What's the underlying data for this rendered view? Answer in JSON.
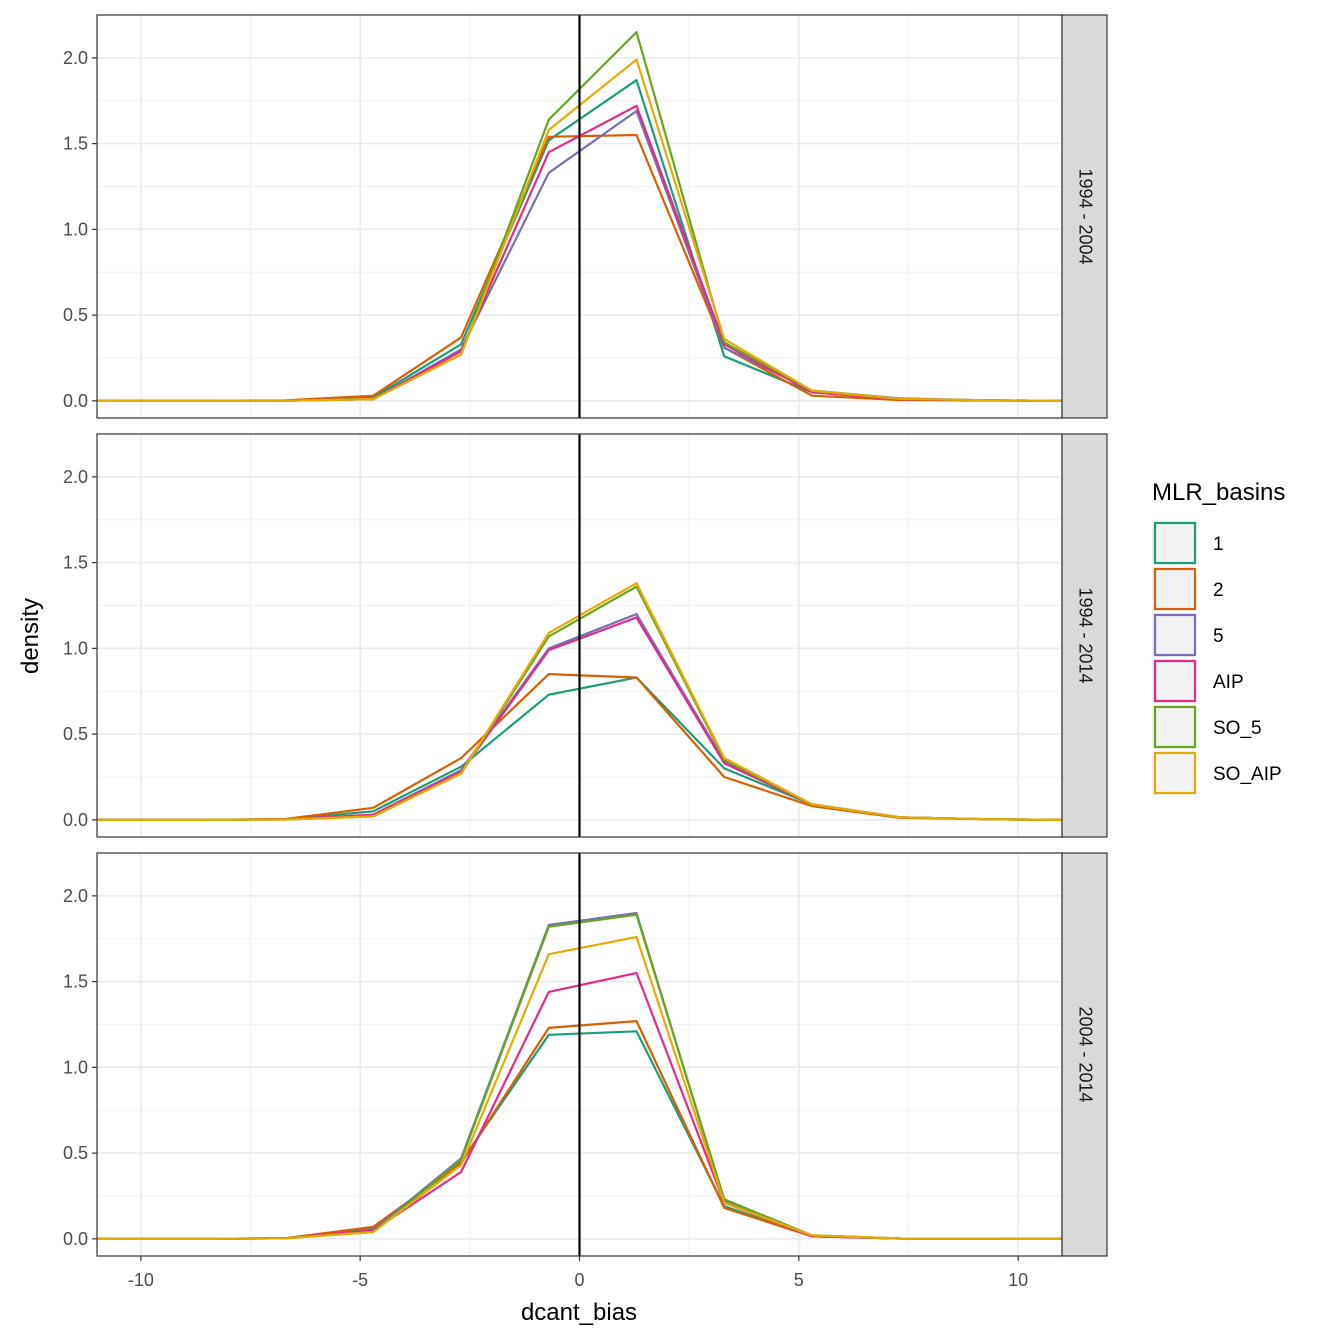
{
  "chart_data": {
    "type": "line",
    "xlabel": "dcant_bias",
    "ylabel": "density",
    "xlim": [
      -11,
      11
    ],
    "ylim": [
      -0.1,
      2.25
    ],
    "x_ticks": [
      -10,
      -5,
      0,
      5,
      10
    ],
    "x_tick_labels": [
      "-10",
      "-5",
      "0",
      "5",
      "10"
    ],
    "y_ticks": [
      0,
      0.5,
      1,
      1.5,
      2
    ],
    "y_tick_labels": [
      "0.0",
      "0.5",
      "1.0",
      "1.5",
      "2.0"
    ],
    "grid": true,
    "reference_line": {
      "x": 0,
      "color": "#000000"
    },
    "x": [
      -11,
      -8.7,
      -6.7,
      -4.7,
      -2.7,
      -0.7,
      1.3,
      3.3,
      5.3,
      7.3,
      9.3,
      11
    ],
    "legend": {
      "title": "MLR_basins",
      "position": "right",
      "entries": [
        {
          "label": "1",
          "color": "#1b9e77"
        },
        {
          "label": "2",
          "color": "#d95f02"
        },
        {
          "label": "5",
          "color": "#7570b3"
        },
        {
          "label": "AIP",
          "color": "#e7298a"
        },
        {
          "label": "SO_5",
          "color": "#66a61e"
        },
        {
          "label": "SO_AIP",
          "color": "#e6ab02"
        }
      ]
    },
    "panels": [
      {
        "strip": "1994 - 2004",
        "series": [
          {
            "name": "1",
            "values": [
              0,
              0,
              0.002,
              0.02,
              0.33,
              1.52,
              1.87,
              0.26,
              0.05,
              0.01,
              0.003,
              0
            ]
          },
          {
            "name": "2",
            "values": [
              0,
              0,
              0.003,
              0.03,
              0.37,
              1.54,
              1.55,
              0.31,
              0.03,
              0.005,
              0.002,
              0
            ]
          },
          {
            "name": "5",
            "values": [
              0,
              0,
              0.001,
              0.01,
              0.3,
              1.33,
              1.69,
              0.31,
              0.06,
              0.015,
              0.003,
              0
            ]
          },
          {
            "name": "AIP",
            "values": [
              0,
              0,
              0.001,
              0.01,
              0.29,
              1.45,
              1.72,
              0.33,
              0.05,
              0.01,
              0.003,
              0
            ]
          },
          {
            "name": "SO_5",
            "values": [
              0,
              0,
              0.001,
              0.01,
              0.27,
              1.64,
              2.15,
              0.34,
              0.06,
              0.012,
              0.003,
              0
            ]
          },
          {
            "name": "SO_AIP",
            "values": [
              0,
              0,
              0.001,
              0.01,
              0.27,
              1.58,
              1.99,
              0.36,
              0.06,
              0.012,
              0.003,
              0
            ]
          }
        ]
      },
      {
        "strip": "1994 - 2014",
        "series": [
          {
            "name": "1",
            "values": [
              0,
              0,
              0.004,
              0.05,
              0.31,
              0.73,
              0.83,
              0.3,
              0.09,
              0.015,
              0.004,
              0
            ]
          },
          {
            "name": "2",
            "values": [
              0,
              0,
              0.005,
              0.07,
              0.36,
              0.85,
              0.83,
              0.25,
              0.08,
              0.012,
              0.003,
              0
            ]
          },
          {
            "name": "5",
            "values": [
              0,
              0,
              0.003,
              0.03,
              0.29,
              1.0,
              1.2,
              0.34,
              0.09,
              0.015,
              0.004,
              0
            ]
          },
          {
            "name": "AIP",
            "values": [
              0,
              0,
              0.003,
              0.03,
              0.28,
              0.99,
              1.18,
              0.33,
              0.09,
              0.015,
              0.004,
              0
            ]
          },
          {
            "name": "SO_5",
            "values": [
              0,
              0,
              0.002,
              0.02,
              0.27,
              1.07,
              1.36,
              0.35,
              0.09,
              0.015,
              0.004,
              0
            ]
          },
          {
            "name": "SO_AIP",
            "values": [
              0,
              0,
              0.002,
              0.02,
              0.27,
              1.09,
              1.38,
              0.36,
              0.09,
              0.015,
              0.004,
              0
            ]
          }
        ]
      },
      {
        "strip": "2004 - 2014",
        "series": [
          {
            "name": "1",
            "values": [
              0,
              0,
              0.004,
              0.06,
              0.45,
              1.19,
              1.21,
              0.19,
              0.015,
              0.002,
              0.001,
              0
            ]
          },
          {
            "name": "2",
            "values": [
              0,
              0,
              0.004,
              0.07,
              0.44,
              1.23,
              1.27,
              0.18,
              0.015,
              0.002,
              0.001,
              0
            ]
          },
          {
            "name": "5",
            "values": [
              0,
              0,
              0.003,
              0.05,
              0.47,
              1.83,
              1.9,
              0.22,
              0.02,
              0.002,
              0.001,
              0
            ]
          },
          {
            "name": "AIP",
            "values": [
              0,
              0,
              0.003,
              0.05,
              0.39,
              1.44,
              1.55,
              0.21,
              0.015,
              0.002,
              0.001,
              0
            ]
          },
          {
            "name": "SO_5",
            "values": [
              0,
              0,
              0.003,
              0.04,
              0.46,
              1.82,
              1.89,
              0.23,
              0.02,
              0.002,
              0.001,
              0
            ]
          },
          {
            "name": "SO_AIP",
            "values": [
              0,
              0,
              0.003,
              0.04,
              0.43,
              1.66,
              1.76,
              0.21,
              0.02,
              0.002,
              0.001,
              0
            ]
          }
        ]
      }
    ]
  }
}
